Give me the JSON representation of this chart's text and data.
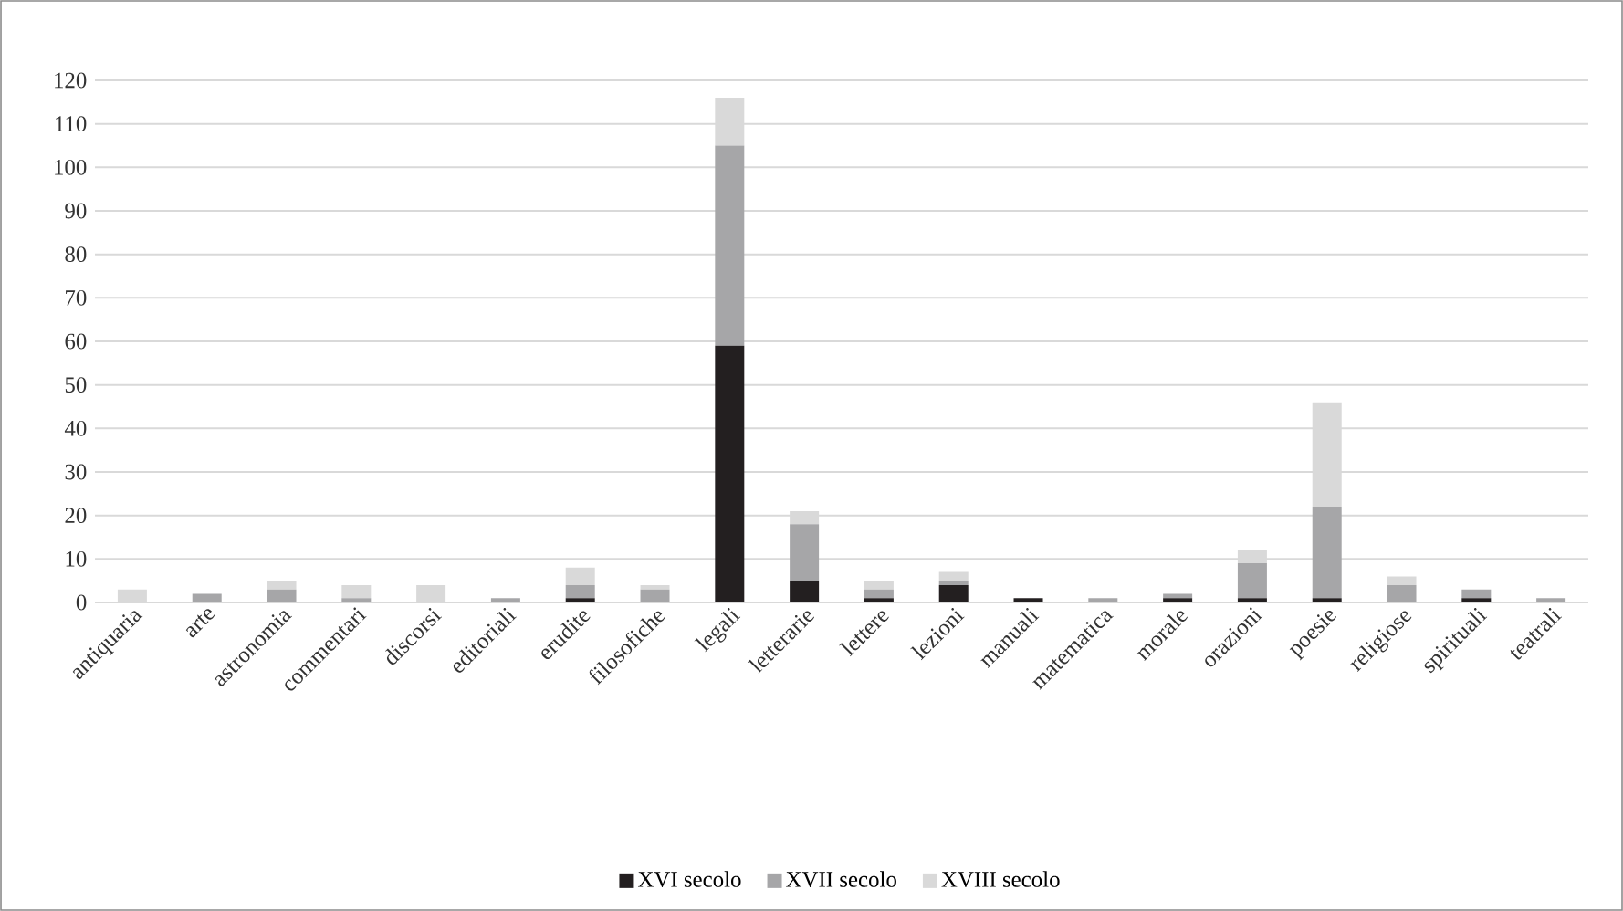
{
  "chart_data": {
    "type": "bar",
    "stacked": true,
    "categories": [
      "antiquaria",
      "arte",
      "astronomia",
      "commentari",
      "discorsi",
      "editoriali",
      "erudite",
      "filosofiche",
      "legali",
      "letterarie",
      "lettere",
      "lezioni",
      "manuali",
      "matematica",
      "morale",
      "orazioni",
      "poesie",
      "religiose",
      "spirituali",
      "teatrali"
    ],
    "series": [
      {
        "name": "XVI secolo",
        "color": "#231f20",
        "values": [
          0,
          0,
          0,
          0,
          0,
          0,
          1,
          0,
          59,
          5,
          1,
          4,
          1,
          0,
          1,
          1,
          1,
          0,
          1,
          0
        ]
      },
      {
        "name": "XVII secolo",
        "color": "#a6a6a8",
        "values": [
          0,
          2,
          3,
          1,
          0,
          1,
          3,
          3,
          46,
          13,
          2,
          1,
          0,
          1,
          1,
          8,
          21,
          4,
          2,
          1
        ]
      },
      {
        "name": "XVIII secolo",
        "color": "#d9d9d9",
        "values": [
          3,
          0,
          2,
          3,
          4,
          0,
          4,
          1,
          11,
          3,
          2,
          2,
          0,
          0,
          0,
          3,
          24,
          2,
          0,
          0
        ]
      }
    ],
    "ylim": [
      0,
      120
    ],
    "yticks": [
      0,
      10,
      20,
      30,
      40,
      50,
      60,
      70,
      80,
      90,
      100,
      110,
      120
    ],
    "grid": "y",
    "legend": "bottom"
  }
}
